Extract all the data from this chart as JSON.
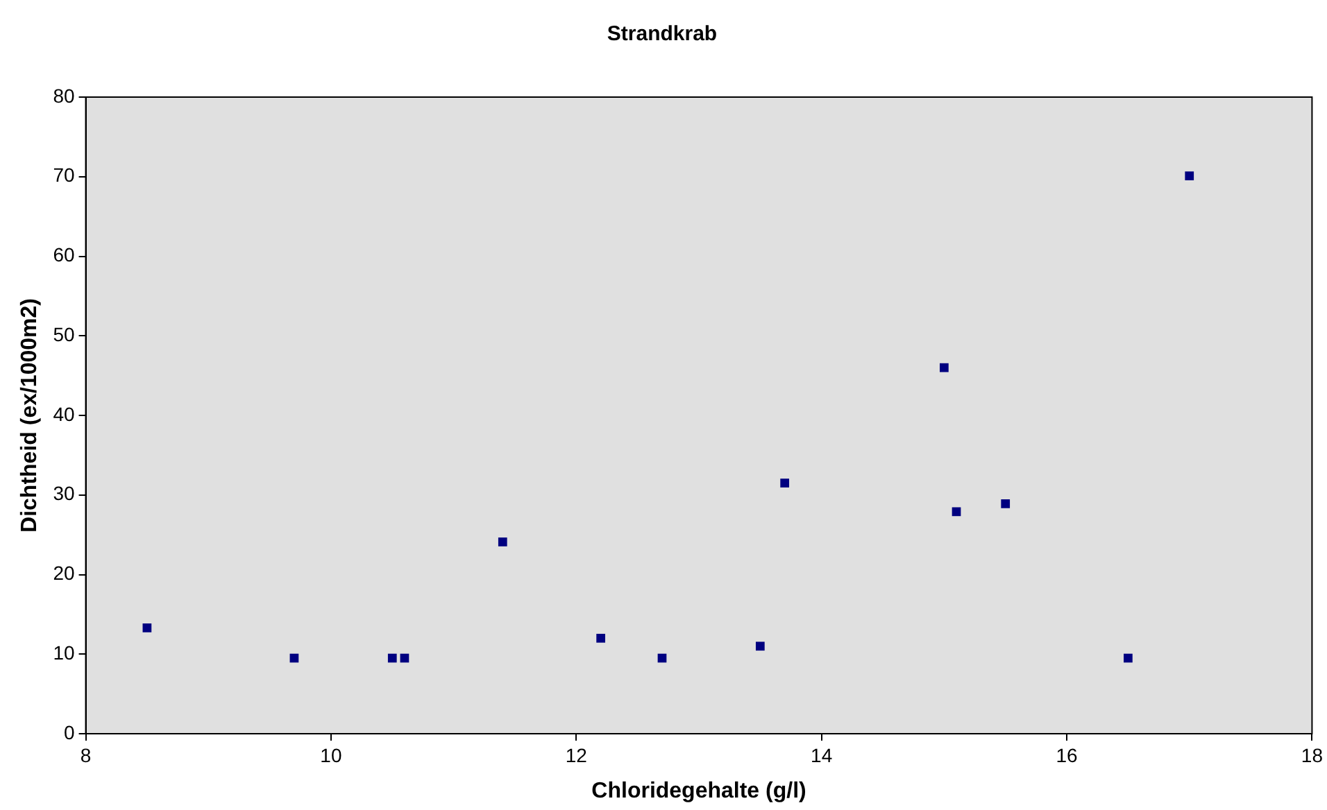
{
  "chart_data": {
    "type": "scatter",
    "title": "Strandkrab",
    "xlabel": "Chloridegehalte (g/l)",
    "ylabel": "Dichtheid (ex/1000m2)",
    "x": [
      8.5,
      9.7,
      10.5,
      10.6,
      11.4,
      12.2,
      12.7,
      13.5,
      13.7,
      15.0,
      15.1,
      15.5,
      16.5,
      17.0
    ],
    "series": [
      {
        "color": "#000080",
        "values": [
          13.3,
          9.5,
          9.5,
          9.5,
          24.1,
          12.0,
          9.5,
          11.0,
          31.5,
          46.0,
          27.9,
          28.9,
          9.5,
          70.1
        ]
      }
    ],
    "xlim": [
      8,
      18
    ],
    "xticks": [
      8,
      10,
      12,
      14,
      16,
      18
    ],
    "ylim": [
      0,
      80
    ],
    "yticks": [
      0,
      10,
      20,
      30,
      40,
      50,
      60,
      70,
      80
    ],
    "grid": false,
    "legend": false,
    "marker": "square"
  }
}
